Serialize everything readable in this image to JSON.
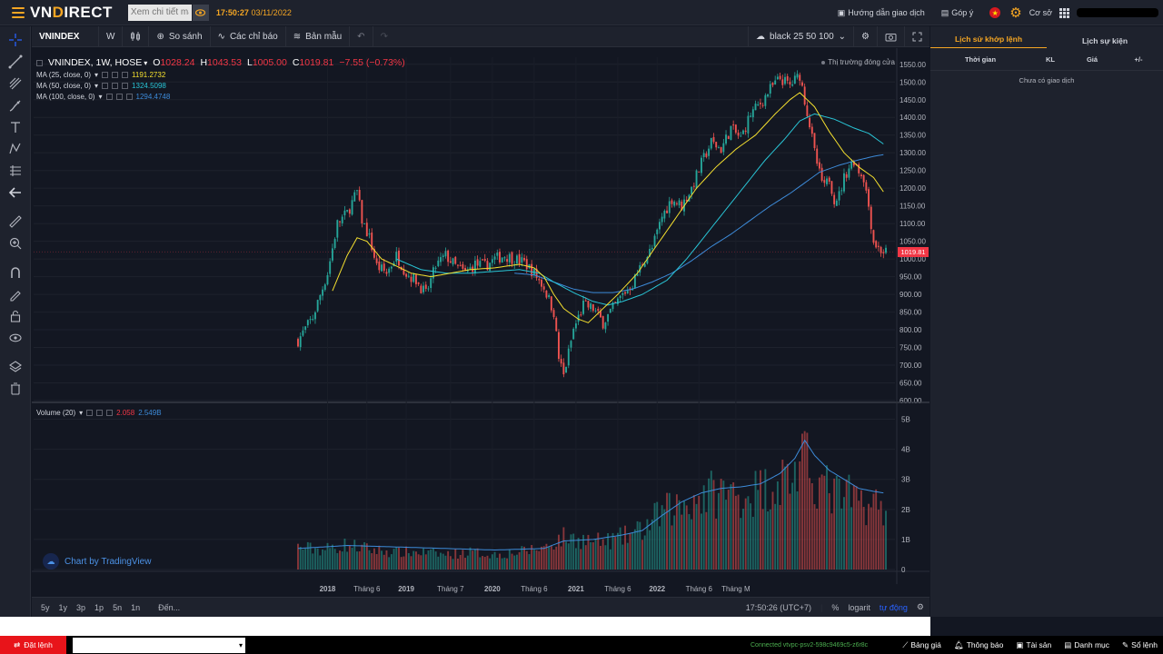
{
  "topbar": {
    "logo_left": "VN",
    "logo_highlight": "D",
    "logo_right": "IRECT",
    "search_placeholder": "Xem chi tiết mã",
    "time": "17:50:27",
    "date": "03/11/2022",
    "guide_label": "Hướng dẫn giao dịch",
    "feedback_label": "Góp ý",
    "base_label": "Cơ sở"
  },
  "chart_toolbar": {
    "symbol": "VNINDEX",
    "interval": "W",
    "compare_label": "So sánh",
    "indicators_label": "Các chỉ báo",
    "templates_label": "Bản mẫu",
    "theme_label": "black 25 50 100"
  },
  "legend": {
    "title": "VNINDEX, 1W, HOSE",
    "o_label": "O",
    "o_val": "1028.24",
    "h_label": "H",
    "h_val": "1043.53",
    "l_label": "L",
    "l_val": "1005.00",
    "c_label": "C",
    "c_val": "1019.81",
    "change": "−7.55 (−0.73%)",
    "market_status": "Thị trường đóng cửa",
    "ma1_label": "MA (25, close, 0)",
    "ma1_value": "1191.2732",
    "ma2_label": "MA (50, close, 0)",
    "ma2_value": "1324.5098",
    "ma3_label": "MA (100, close, 0)",
    "ma3_value": "1294.4748",
    "vol_label": "Volume (20)",
    "vol_value": "2.058",
    "vol_ma_value": "2.549B",
    "last_price_tag": "1019.81"
  },
  "colors": {
    "up": "#26a69a",
    "down": "#ef5350",
    "ma25": "#f5e02f",
    "ma50": "#29c5d6",
    "ma100": "#3d8bd9",
    "accent": "#f5a623"
  },
  "chart_data": {
    "type": "candlestick",
    "title": "VNINDEX, 1W, HOSE",
    "price_axis_ticks": [
      "1550.00",
      "1500.00",
      "1450.00",
      "1400.00",
      "1350.00",
      "1300.00",
      "1250.00",
      "1200.00",
      "1150.00",
      "1100.00",
      "1050.00",
      "1000.00",
      "950.00",
      "900.00",
      "850.00",
      "800.00",
      "750.00",
      "700.00",
      "650.00",
      "600.00"
    ],
    "volume_axis_ticks": [
      "5B",
      "4B",
      "3B",
      "2B",
      "1B",
      "0"
    ],
    "x_tick_labels": [
      "2018",
      "Tháng 6",
      "2019",
      "Tháng 7",
      "2020",
      "Tháng 6",
      "2021",
      "Tháng 6",
      "2022",
      "Tháng 6",
      "Tháng M"
    ],
    "price_ylim": [
      600,
      1570
    ],
    "volume_ylim": [
      0,
      5.5
    ],
    "close_path": [
      [
        0,
        770
      ],
      [
        6,
        835
      ],
      [
        12,
        960
      ],
      [
        16,
        1100
      ],
      [
        20,
        1130
      ],
      [
        24,
        1190
      ],
      [
        26,
        1110
      ],
      [
        29,
        1060
      ],
      [
        32,
        980
      ],
      [
        36,
        960
      ],
      [
        40,
        1010
      ],
      [
        44,
        960
      ],
      [
        48,
        940
      ],
      [
        52,
        900
      ],
      [
        56,
        980
      ],
      [
        60,
        1010
      ],
      [
        64,
        980
      ],
      [
        68,
        960
      ],
      [
        72,
        985
      ],
      [
        76,
        980
      ],
      [
        80,
        1000
      ],
      [
        84,
        1010
      ],
      [
        88,
        1000
      ],
      [
        92,
        990
      ],
      [
        96,
        960
      ],
      [
        100,
        920
      ],
      [
        104,
        850
      ],
      [
        106,
        720
      ],
      [
        108,
        670
      ],
      [
        112,
        800
      ],
      [
        116,
        870
      ],
      [
        120,
        860
      ],
      [
        124,
        820
      ],
      [
        128,
        860
      ],
      [
        132,
        900
      ],
      [
        136,
        930
      ],
      [
        140,
        990
      ],
      [
        144,
        1030
      ],
      [
        148,
        1120
      ],
      [
        152,
        1170
      ],
      [
        156,
        1150
      ],
      [
        160,
        1200
      ],
      [
        164,
        1270
      ],
      [
        168,
        1330
      ],
      [
        172,
        1310
      ],
      [
        176,
        1370
      ],
      [
        180,
        1340
      ],
      [
        184,
        1410
      ],
      [
        188,
        1440
      ],
      [
        192,
        1480
      ],
      [
        196,
        1510
      ],
      [
        200,
        1490
      ],
      [
        204,
        1520
      ],
      [
        206,
        1450
      ],
      [
        208,
        1380
      ],
      [
        210,
        1300
      ],
      [
        212,
        1240
      ],
      [
        214,
        1200
      ],
      [
        216,
        1230
      ],
      [
        218,
        1170
      ],
      [
        220,
        1180
      ],
      [
        222,
        1230
      ],
      [
        224,
        1260
      ],
      [
        226,
        1280
      ],
      [
        228,
        1250
      ],
      [
        230,
        1230
      ],
      [
        232,
        1150
      ],
      [
        234,
        1050
      ],
      [
        236,
        1030
      ],
      [
        238,
        1020
      ]
    ],
    "ma25_path": [
      [
        14,
        910
      ],
      [
        20,
        1010
      ],
      [
        24,
        1060
      ],
      [
        28,
        1050
      ],
      [
        34,
        1000
      ],
      [
        40,
        980
      ],
      [
        46,
        960
      ],
      [
        54,
        950
      ],
      [
        62,
        960
      ],
      [
        70,
        970
      ],
      [
        80,
        975
      ],
      [
        90,
        985
      ],
      [
        96,
        975
      ],
      [
        100,
        950
      ],
      [
        104,
        900
      ],
      [
        108,
        860
      ],
      [
        114,
        830
      ],
      [
        118,
        820
      ],
      [
        124,
        860
      ],
      [
        130,
        900
      ],
      [
        138,
        960
      ],
      [
        146,
        1040
      ],
      [
        154,
        1120
      ],
      [
        162,
        1200
      ],
      [
        170,
        1260
      ],
      [
        178,
        1310
      ],
      [
        186,
        1350
      ],
      [
        194,
        1410
      ],
      [
        200,
        1450
      ],
      [
        204,
        1470
      ],
      [
        210,
        1430
      ],
      [
        216,
        1360
      ],
      [
        222,
        1300
      ],
      [
        228,
        1260
      ],
      [
        234,
        1230
      ],
      [
        238,
        1190
      ]
    ],
    "ma50_path": [
      [
        40,
        1000
      ],
      [
        50,
        970
      ],
      [
        60,
        960
      ],
      [
        70,
        960
      ],
      [
        80,
        965
      ],
      [
        90,
        970
      ],
      [
        98,
        960
      ],
      [
        104,
        935
      ],
      [
        112,
        905
      ],
      [
        120,
        880
      ],
      [
        126,
        870
      ],
      [
        132,
        880
      ],
      [
        140,
        900
      ],
      [
        150,
        940
      ],
      [
        158,
        1000
      ],
      [
        166,
        1070
      ],
      [
        174,
        1140
      ],
      [
        182,
        1210
      ],
      [
        190,
        1280
      ],
      [
        198,
        1340
      ],
      [
        204,
        1390
      ],
      [
        210,
        1410
      ],
      [
        218,
        1395
      ],
      [
        226,
        1370
      ],
      [
        232,
        1355
      ],
      [
        238,
        1325
      ]
    ],
    "ma100_path": [
      [
        88,
        960
      ],
      [
        96,
        955
      ],
      [
        104,
        935
      ],
      [
        112,
        915
      ],
      [
        120,
        905
      ],
      [
        128,
        905
      ],
      [
        136,
        915
      ],
      [
        144,
        935
      ],
      [
        152,
        960
      ],
      [
        160,
        995
      ],
      [
        168,
        1035
      ],
      [
        176,
        1070
      ],
      [
        184,
        1110
      ],
      [
        192,
        1150
      ],
      [
        200,
        1185
      ],
      [
        206,
        1215
      ],
      [
        212,
        1245
      ],
      [
        220,
        1265
      ],
      [
        228,
        1280
      ],
      [
        234,
        1290
      ],
      [
        238,
        1295
      ]
    ],
    "volume_envelope": [
      [
        0,
        0.9
      ],
      [
        10,
        0.8
      ],
      [
        20,
        1.0
      ],
      [
        30,
        0.8
      ],
      [
        40,
        0.7
      ],
      [
        50,
        0.7
      ],
      [
        60,
        0.6
      ],
      [
        70,
        0.7
      ],
      [
        80,
        0.6
      ],
      [
        90,
        0.7
      ],
      [
        100,
        0.9
      ],
      [
        108,
        1.3
      ],
      [
        116,
        1.2
      ],
      [
        124,
        1.1
      ],
      [
        132,
        1.3
      ],
      [
        140,
        1.6
      ],
      [
        148,
        2.3
      ],
      [
        156,
        2.6
      ],
      [
        164,
        3.0
      ],
      [
        172,
        3.1
      ],
      [
        180,
        3.0
      ],
      [
        188,
        3.2
      ],
      [
        196,
        3.6
      ],
      [
        202,
        3.9
      ],
      [
        206,
        4.3
      ],
      [
        212,
        3.5
      ],
      [
        218,
        3.0
      ],
      [
        224,
        2.9
      ],
      [
        230,
        2.7
      ],
      [
        238,
        2.5
      ]
    ],
    "volume_ma_path": [
      [
        0,
        0.7
      ],
      [
        20,
        0.8
      ],
      [
        40,
        0.75
      ],
      [
        60,
        0.7
      ],
      [
        80,
        0.65
      ],
      [
        100,
        0.7
      ],
      [
        108,
        0.95
      ],
      [
        120,
        1.0
      ],
      [
        132,
        1.15
      ],
      [
        140,
        1.3
      ],
      [
        148,
        1.8
      ],
      [
        156,
        2.25
      ],
      [
        164,
        2.55
      ],
      [
        172,
        2.7
      ],
      [
        180,
        2.75
      ],
      [
        188,
        2.85
      ],
      [
        196,
        3.2
      ],
      [
        202,
        3.7
      ],
      [
        206,
        4.3
      ],
      [
        210,
        3.8
      ],
      [
        216,
        3.3
      ],
      [
        222,
        3.0
      ],
      [
        228,
        2.7
      ],
      [
        234,
        2.6
      ],
      [
        238,
        2.55
      ]
    ]
  },
  "bottombar": {
    "ranges": [
      "5y",
      "1y",
      "3p",
      "1p",
      "5n",
      "1n"
    ],
    "goto_label": "Đến...",
    "clock": "17:50:26 (UTC+7)",
    "pct_label": "%",
    "log_label": "logarit",
    "auto_label": "tự động"
  },
  "right_panel": {
    "tab_history": "Lịch sử khớp lệnh",
    "tab_events": "Lịch sự kiện",
    "col_time": "Thời gian",
    "col_qty": "KL",
    "col_price": "Giá",
    "col_change": "+/-",
    "empty_message": "Chưa có giao dịch"
  },
  "footer": {
    "order_label": "Đặt lệnh",
    "connected_text": "Connected vtvpc-psv2-598c9469c5-z6r8c",
    "price_board": "Bảng giá",
    "notifications": "Thông báo",
    "assets": "Tài sản",
    "portfolio": "Danh mục",
    "order_book": "Sổ lệnh"
  }
}
